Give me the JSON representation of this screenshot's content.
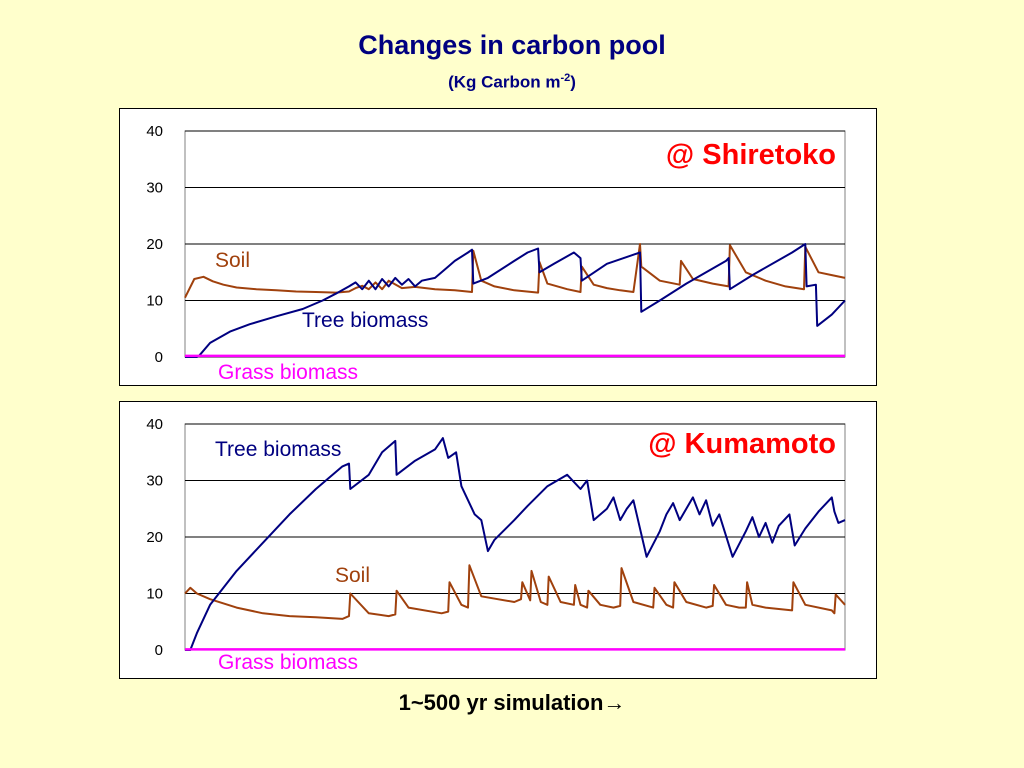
{
  "title": "Changes in carbon pool",
  "subtitle_main": "(Kg Carbon m",
  "subtitle_sup": "-2",
  "subtitle_end": ")",
  "x_caption": "1~500 yr simulation→",
  "colors": {
    "soil": "#a0410d",
    "tree": "#000080",
    "grass": "#ff00ff",
    "location": "#ff0000",
    "background": "#ffffcc"
  },
  "chart_data": [
    {
      "type": "line",
      "location": "@ Shiretoko",
      "ylim": [
        0,
        40
      ],
      "yticks": [
        "0",
        "10",
        "20",
        "30",
        "40"
      ],
      "xlim": [
        1,
        500
      ],
      "grid": true,
      "series": [
        {
          "name": "Soil",
          "x": [
            1,
            8,
            15,
            22,
            30,
            40,
            55,
            70,
            85,
            100,
            115,
            125,
            130,
            135,
            140,
            145,
            150,
            155,
            165,
            175,
            190,
            205,
            218,
            219,
            225,
            235,
            250,
            268,
            269,
            275,
            290,
            300,
            301,
            310,
            320,
            330,
            340,
            345,
            346,
            360,
            375,
            376,
            385,
            400,
            412,
            413,
            425,
            440,
            455,
            469,
            470,
            480,
            490,
            500
          ],
          "values": [
            10.5,
            13.8,
            14.2,
            13.4,
            12.8,
            12.3,
            12.0,
            11.8,
            11.6,
            11.5,
            11.4,
            11.6,
            12.2,
            12.6,
            12.0,
            13.2,
            12.0,
            13.5,
            12.2,
            12.4,
            12.0,
            11.8,
            11.5,
            18.8,
            13.5,
            12.5,
            11.8,
            11.4,
            16.8,
            13.0,
            12.0,
            11.5,
            16.0,
            12.8,
            12.2,
            11.8,
            11.5,
            20.0,
            16.0,
            13.5,
            12.8,
            17.0,
            13.8,
            13.0,
            12.5,
            19.8,
            15.0,
            13.5,
            12.5,
            12.0,
            19.5,
            15.0,
            14.5,
            14.0
          ]
        },
        {
          "name": "Tree biomass",
          "x": [
            1,
            10,
            12,
            20,
            35,
            50,
            70,
            90,
            105,
            115,
            125,
            130,
            135,
            140,
            145,
            150,
            155,
            160,
            165,
            170,
            175,
            180,
            190,
            200,
            205,
            215,
            218,
            219,
            230,
            250,
            260,
            268,
            269,
            280,
            295,
            300,
            301,
            320,
            345,
            346,
            360,
            380,
            410,
            412,
            413,
            430,
            460,
            470,
            471,
            478,
            479,
            490,
            500
          ],
          "values": [
            0,
            0,
            0.3,
            2.5,
            4.5,
            5.8,
            7.2,
            8.5,
            10.0,
            11.2,
            12.5,
            13.2,
            12.0,
            13.5,
            12.0,
            13.8,
            12.5,
            14.0,
            12.8,
            13.8,
            12.5,
            13.5,
            14.0,
            16.0,
            17.0,
            18.5,
            19.0,
            13.0,
            14.0,
            17.0,
            18.5,
            19.2,
            15.0,
            16.5,
            18.5,
            17.5,
            13.5,
            16.5,
            18.5,
            8.0,
            10.0,
            13.0,
            17.0,
            17.5,
            12.0,
            14.5,
            18.5,
            20.0,
            12.5,
            12.8,
            5.5,
            7.5,
            10.0
          ]
        },
        {
          "name": "Grass biomass",
          "x": [
            1,
            500
          ],
          "values": [
            0.2,
            0.2
          ]
        }
      ],
      "annotations": [
        "Soil",
        "Tree biomass",
        "Grass biomass"
      ]
    },
    {
      "type": "line",
      "location": "@ Kumamoto",
      "ylim": [
        0,
        40
      ],
      "yticks": [
        "0",
        "10",
        "20",
        "30",
        "40"
      ],
      "xlim": [
        1,
        500
      ],
      "grid": true,
      "series": [
        {
          "name": "Soil",
          "x": [
            1,
            5,
            10,
            20,
            40,
            60,
            80,
            100,
            120,
            125,
            126,
            140,
            155,
            160,
            161,
            170,
            195,
            200,
            201,
            210,
            215,
            216,
            225,
            250,
            255,
            256,
            262,
            263,
            270,
            275,
            276,
            285,
            295,
            296,
            300,
            305,
            306,
            315,
            325,
            330,
            331,
            340,
            355,
            356,
            365,
            370,
            371,
            380,
            395,
            400,
            401,
            410,
            420,
            425,
            426,
            430,
            440,
            460,
            461,
            470,
            490,
            492,
            493,
            500
          ],
          "values": [
            10.0,
            11.0,
            10.0,
            9.0,
            7.5,
            6.5,
            6.0,
            5.8,
            5.5,
            6.0,
            10.0,
            6.5,
            6.0,
            6.3,
            10.5,
            7.5,
            6.5,
            6.8,
            12.0,
            8.0,
            7.5,
            15.0,
            9.5,
            8.5,
            9.0,
            12.0,
            8.8,
            14.0,
            8.5,
            8.0,
            13.0,
            8.5,
            8.0,
            11.5,
            8.0,
            7.5,
            10.5,
            8.0,
            7.5,
            7.8,
            14.5,
            8.5,
            7.5,
            11.0,
            8.0,
            7.5,
            12.0,
            8.5,
            7.5,
            7.8,
            11.5,
            8.0,
            7.5,
            7.5,
            12.0,
            8.0,
            7.5,
            7.0,
            12.0,
            8.0,
            7.0,
            6.5,
            9.8,
            8.0
          ]
        },
        {
          "name": "Tree biomass",
          "x": [
            1,
            5,
            10,
            20,
            40,
            60,
            80,
            100,
            120,
            125,
            126,
            140,
            150,
            160,
            161,
            175,
            190,
            196,
            200,
            206,
            210,
            220,
            225,
            230,
            235,
            250,
            260,
            275,
            290,
            300,
            305,
            310,
            320,
            325,
            330,
            335,
            340,
            350,
            360,
            365,
            370,
            375,
            385,
            390,
            395,
            400,
            405,
            415,
            425,
            430,
            435,
            440,
            445,
            450,
            458,
            462,
            470,
            480,
            490,
            492,
            495,
            500
          ],
          "values": [
            0,
            0,
            3.0,
            8.0,
            14.0,
            19.0,
            24.0,
            28.5,
            32.5,
            33.0,
            28.5,
            31.0,
            35.0,
            37.0,
            31.0,
            33.5,
            35.5,
            37.5,
            34.0,
            35.0,
            29.0,
            24.0,
            23.0,
            17.5,
            19.5,
            23.0,
            25.5,
            29.0,
            31.0,
            28.5,
            30.0,
            23.0,
            25.0,
            27.0,
            23.0,
            25.0,
            26.5,
            16.5,
            21.0,
            24.0,
            26.0,
            23.0,
            27.0,
            24.0,
            26.5,
            22.0,
            24.0,
            16.5,
            21.0,
            23.5,
            20.0,
            22.5,
            19.0,
            22.0,
            24.0,
            18.5,
            21.5,
            24.5,
            27.0,
            24.5,
            22.5,
            23.0
          ]
        },
        {
          "name": "Grass biomass",
          "x": [
            1,
            500
          ],
          "values": [
            0.1,
            0.1
          ]
        }
      ],
      "annotations": [
        "Tree biomass",
        "Soil",
        "Grass biomass"
      ]
    }
  ]
}
